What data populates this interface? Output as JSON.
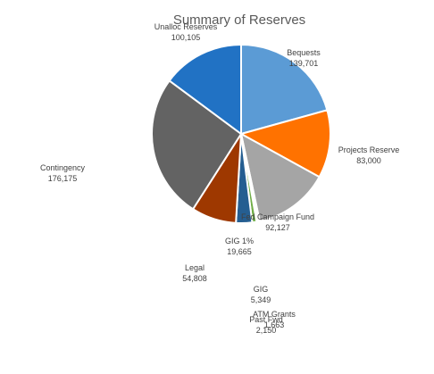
{
  "chart_data": {
    "type": "pie",
    "title": "Summary of Reserves",
    "slices": [
      {
        "label": "Bequests",
        "value": 139701,
        "value_label": "139,701",
        "color": "#5B9BD5"
      },
      {
        "label": "Projects Reserve",
        "value": 83000,
        "value_label": "83,000",
        "color": "#FF7200"
      },
      {
        "label": "Fed Campaign Fund",
        "value": 92127,
        "value_label": "92,127",
        "color": "#A5A5A5"
      },
      {
        "label": "Past Fwd",
        "value": 2150,
        "value_label": "2,150",
        "color": "#FFC000"
      },
      {
        "label": "ATM Grants",
        "value": 1663,
        "value_label": "1,663",
        "color": "#4472C4"
      },
      {
        "label": "GIG",
        "value": 5349,
        "value_label": "5,349",
        "color": "#70AD47"
      },
      {
        "label": "GIG 1%",
        "value": 19665,
        "value_label": "19,665",
        "color": "#255E91"
      },
      {
        "label": "Legal",
        "value": 54808,
        "value_label": "54,808",
        "color": "#9E3800"
      },
      {
        "label": "Contingency",
        "value": 176175,
        "value_label": "176,175",
        "color": "#636363"
      },
      {
        "label": "Unalloc Reserves",
        "value": 100105,
        "value_label": "100,105",
        "color": "#2172C4"
      }
    ],
    "start_angle_deg": 0,
    "direction": "clockwise",
    "legend": "none",
    "data_labels": "outside"
  }
}
